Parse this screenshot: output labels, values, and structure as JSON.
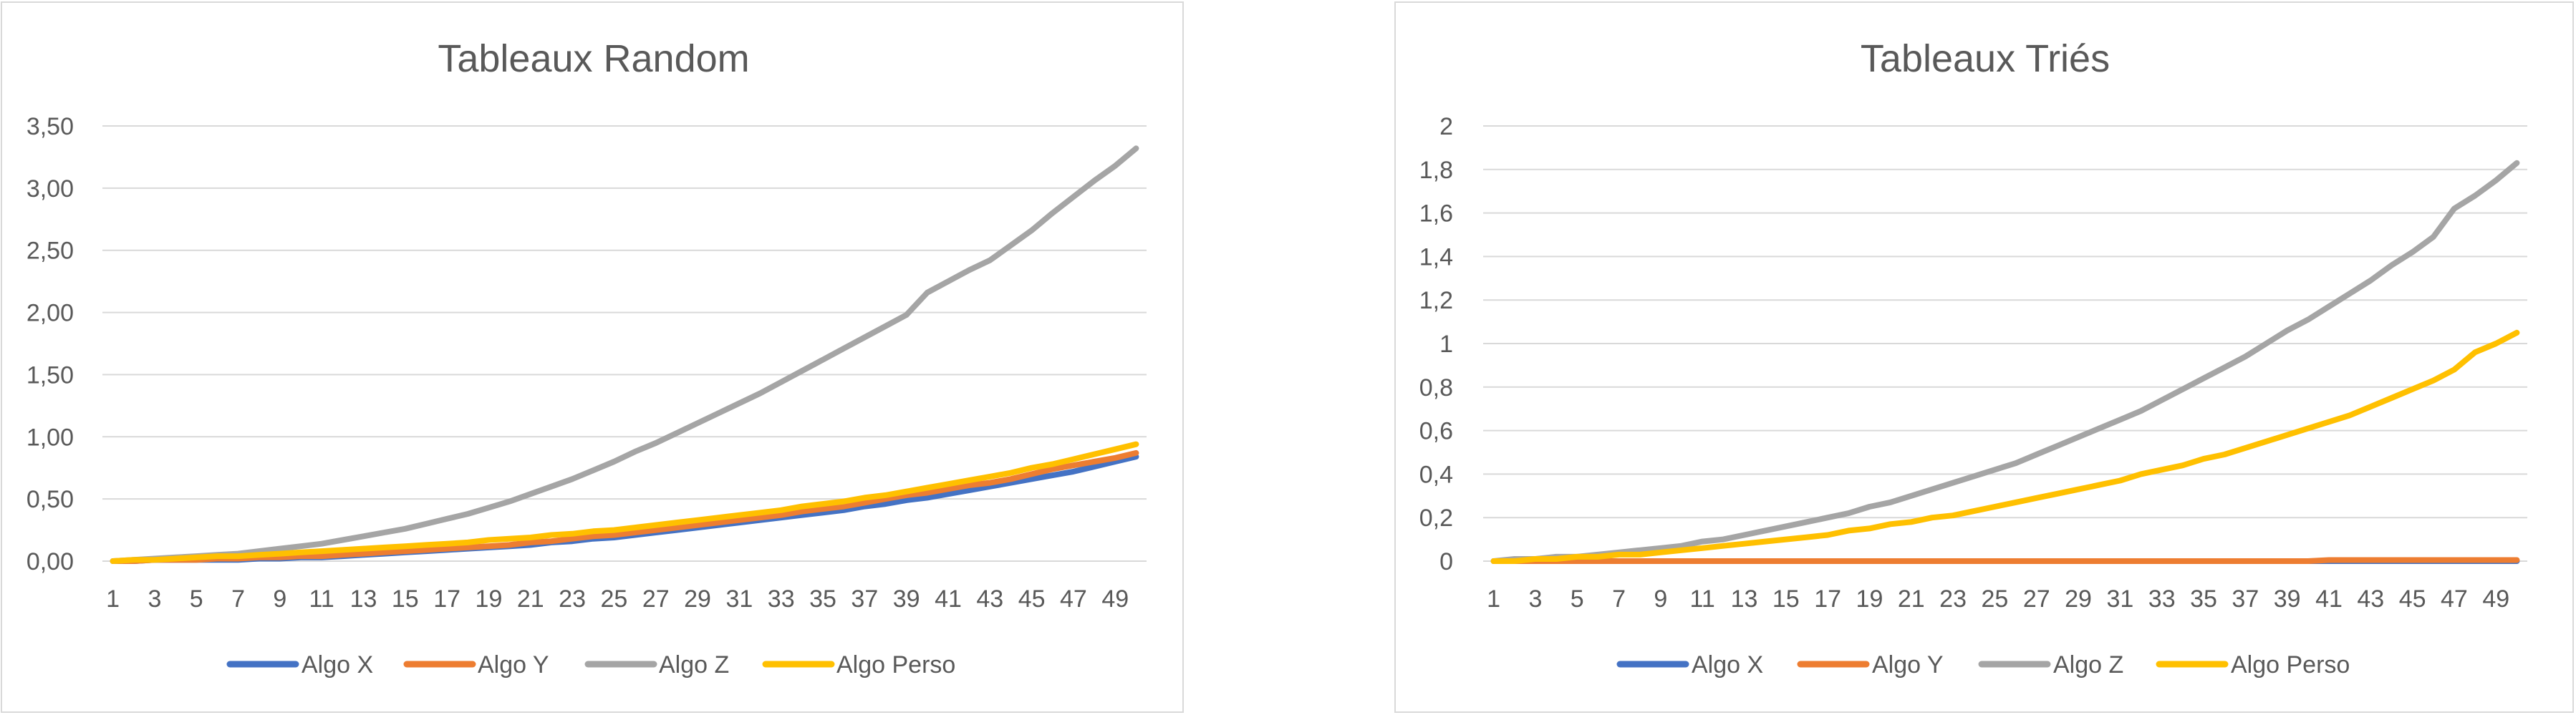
{
  "chart_data": [
    {
      "type": "line",
      "title": "Tableaux Random",
      "xlabel": "",
      "ylabel": "",
      "x": [
        1,
        2,
        3,
        4,
        5,
        6,
        7,
        8,
        9,
        10,
        11,
        12,
        13,
        14,
        15,
        16,
        17,
        18,
        19,
        20,
        21,
        22,
        23,
        24,
        25,
        26,
        27,
        28,
        29,
        30,
        31,
        32,
        33,
        34,
        35,
        36,
        37,
        38,
        39,
        40,
        41,
        42,
        43,
        44,
        45,
        46,
        47,
        48,
        49,
        50
      ],
      "x_tick_labels": [
        "1",
        "3",
        "5",
        "7",
        "9",
        "11",
        "13",
        "15",
        "17",
        "19",
        "21",
        "23",
        "25",
        "27",
        "29",
        "31",
        "33",
        "35",
        "37",
        "39",
        "41",
        "43",
        "45",
        "47",
        "49"
      ],
      "y_tick_labels": [
        "0,00",
        "0,50",
        "1,00",
        "1,50",
        "2,00",
        "2,50",
        "3,00",
        "3,50"
      ],
      "y_ticks": [
        0,
        0.5,
        1,
        1.5,
        2,
        2.5,
        3,
        3.5
      ],
      "ylim": [
        0,
        3.5
      ],
      "grid": true,
      "legend_position": "bottom",
      "series": [
        {
          "name": "Algo X",
          "color": "#4472C4",
          "values": [
            0.0,
            0.0,
            0.01,
            0.01,
            0.01,
            0.01,
            0.01,
            0.02,
            0.02,
            0.03,
            0.03,
            0.04,
            0.05,
            0.06,
            0.07,
            0.08,
            0.09,
            0.1,
            0.11,
            0.12,
            0.13,
            0.15,
            0.16,
            0.18,
            0.19,
            0.21,
            0.23,
            0.25,
            0.27,
            0.29,
            0.31,
            0.33,
            0.35,
            0.37,
            0.39,
            0.41,
            0.44,
            0.46,
            0.49,
            0.51,
            0.54,
            0.57,
            0.6,
            0.63,
            0.66,
            0.69,
            0.72,
            0.76,
            0.8,
            0.84
          ]
        },
        {
          "name": "Algo Y",
          "color": "#ED7D31",
          "values": [
            0.0,
            0.0,
            0.01,
            0.01,
            0.01,
            0.02,
            0.02,
            0.03,
            0.03,
            0.04,
            0.04,
            0.05,
            0.06,
            0.07,
            0.08,
            0.09,
            0.1,
            0.11,
            0.12,
            0.13,
            0.15,
            0.16,
            0.18,
            0.2,
            0.21,
            0.23,
            0.25,
            0.27,
            0.29,
            0.31,
            0.33,
            0.35,
            0.37,
            0.4,
            0.42,
            0.44,
            0.47,
            0.5,
            0.53,
            0.55,
            0.58,
            0.61,
            0.63,
            0.66,
            0.7,
            0.74,
            0.77,
            0.8,
            0.83,
            0.87
          ]
        },
        {
          "name": "Algo Z",
          "color": "#A5A5A5",
          "values": [
            0.0,
            0.01,
            0.02,
            0.03,
            0.04,
            0.05,
            0.06,
            0.08,
            0.1,
            0.12,
            0.14,
            0.17,
            0.2,
            0.23,
            0.26,
            0.3,
            0.34,
            0.38,
            0.43,
            0.48,
            0.54,
            0.6,
            0.66,
            0.73,
            0.8,
            0.88,
            0.95,
            1.03,
            1.11,
            1.19,
            1.27,
            1.35,
            1.44,
            1.53,
            1.62,
            1.71,
            1.8,
            1.89,
            1.98,
            2.16,
            2.25,
            2.34,
            2.42,
            2.54,
            2.66,
            2.8,
            2.93,
            3.06,
            3.18,
            3.32
          ]
        },
        {
          "name": "Algo Perso",
          "color": "#FFC000",
          "values": [
            0.0,
            0.01,
            0.01,
            0.02,
            0.03,
            0.04,
            0.04,
            0.05,
            0.06,
            0.07,
            0.08,
            0.09,
            0.1,
            0.11,
            0.12,
            0.13,
            0.14,
            0.15,
            0.17,
            0.18,
            0.19,
            0.21,
            0.22,
            0.24,
            0.25,
            0.27,
            0.29,
            0.31,
            0.33,
            0.35,
            0.37,
            0.39,
            0.41,
            0.44,
            0.46,
            0.48,
            0.51,
            0.53,
            0.56,
            0.59,
            0.62,
            0.65,
            0.68,
            0.71,
            0.75,
            0.78,
            0.82,
            0.86,
            0.9,
            0.94
          ]
        }
      ]
    },
    {
      "type": "line",
      "title": "Tableaux Triés",
      "xlabel": "",
      "ylabel": "",
      "x": [
        1,
        2,
        3,
        4,
        5,
        6,
        7,
        8,
        9,
        10,
        11,
        12,
        13,
        14,
        15,
        16,
        17,
        18,
        19,
        20,
        21,
        22,
        23,
        24,
        25,
        26,
        27,
        28,
        29,
        30,
        31,
        32,
        33,
        34,
        35,
        36,
        37,
        38,
        39,
        40,
        41,
        42,
        43,
        44,
        45,
        46,
        47,
        48,
        49,
        50
      ],
      "x_tick_labels": [
        "1",
        "3",
        "5",
        "7",
        "9",
        "11",
        "13",
        "15",
        "17",
        "19",
        "21",
        "23",
        "25",
        "27",
        "29",
        "31",
        "33",
        "35",
        "37",
        "39",
        "41",
        "43",
        "45",
        "47",
        "49"
      ],
      "y_tick_labels": [
        "0",
        "0,2",
        "0,4",
        "0,6",
        "0,8",
        "1",
        "1,2",
        "1,4",
        "1,6",
        "1,8",
        "2"
      ],
      "y_ticks": [
        0,
        0.2,
        0.4,
        0.6,
        0.8,
        1,
        1.2,
        1.4,
        1.6,
        1.8,
        2
      ],
      "ylim": [
        0,
        2
      ],
      "grid": true,
      "legend_position": "bottom",
      "series": [
        {
          "name": "Algo X",
          "color": "#4472C4",
          "values": [
            0,
            0,
            0,
            0,
            0,
            0,
            0,
            0,
            0,
            0,
            0,
            0,
            0,
            0,
            0,
            0,
            0,
            0,
            0,
            0,
            0,
            0,
            0,
            0,
            0,
            0,
            0,
            0,
            0,
            0,
            0,
            0,
            0,
            0,
            0,
            0,
            0,
            0,
            0,
            0,
            0,
            0,
            0,
            0,
            0,
            0,
            0,
            0,
            0,
            0
          ]
        },
        {
          "name": "Algo Y",
          "color": "#ED7D31",
          "values": [
            0,
            0,
            0,
            0,
            0,
            0,
            0,
            0,
            0,
            0,
            0,
            0,
            0,
            0,
            0,
            0,
            0,
            0,
            0,
            0,
            0,
            0,
            0,
            0,
            0,
            0,
            0,
            0,
            0,
            0,
            0,
            0,
            0,
            0,
            0,
            0,
            0,
            0,
            0,
            0,
            0.005,
            0.005,
            0.005,
            0.005,
            0.005,
            0.005,
            0.005,
            0.005,
            0.005,
            0.005
          ]
        },
        {
          "name": "Algo Z",
          "color": "#A5A5A5",
          "values": [
            0.0,
            0.01,
            0.01,
            0.02,
            0.02,
            0.03,
            0.04,
            0.05,
            0.06,
            0.07,
            0.09,
            0.1,
            0.12,
            0.14,
            0.16,
            0.18,
            0.2,
            0.22,
            0.25,
            0.27,
            0.3,
            0.33,
            0.36,
            0.39,
            0.42,
            0.45,
            0.49,
            0.53,
            0.57,
            0.61,
            0.65,
            0.69,
            0.74,
            0.79,
            0.84,
            0.89,
            0.94,
            1.0,
            1.06,
            1.11,
            1.17,
            1.23,
            1.29,
            1.36,
            1.42,
            1.49,
            1.62,
            1.68,
            1.75,
            1.83
          ]
        },
        {
          "name": "Algo Perso",
          "color": "#FFC000",
          "values": [
            0.0,
            0.0,
            0.01,
            0.01,
            0.02,
            0.02,
            0.03,
            0.03,
            0.04,
            0.05,
            0.06,
            0.07,
            0.08,
            0.09,
            0.1,
            0.11,
            0.12,
            0.14,
            0.15,
            0.17,
            0.18,
            0.2,
            0.21,
            0.23,
            0.25,
            0.27,
            0.29,
            0.31,
            0.33,
            0.35,
            0.37,
            0.4,
            0.42,
            0.44,
            0.47,
            0.49,
            0.52,
            0.55,
            0.58,
            0.61,
            0.64,
            0.67,
            0.71,
            0.75,
            0.79,
            0.83,
            0.88,
            0.96,
            1.0,
            1.05
          ]
        }
      ]
    }
  ]
}
